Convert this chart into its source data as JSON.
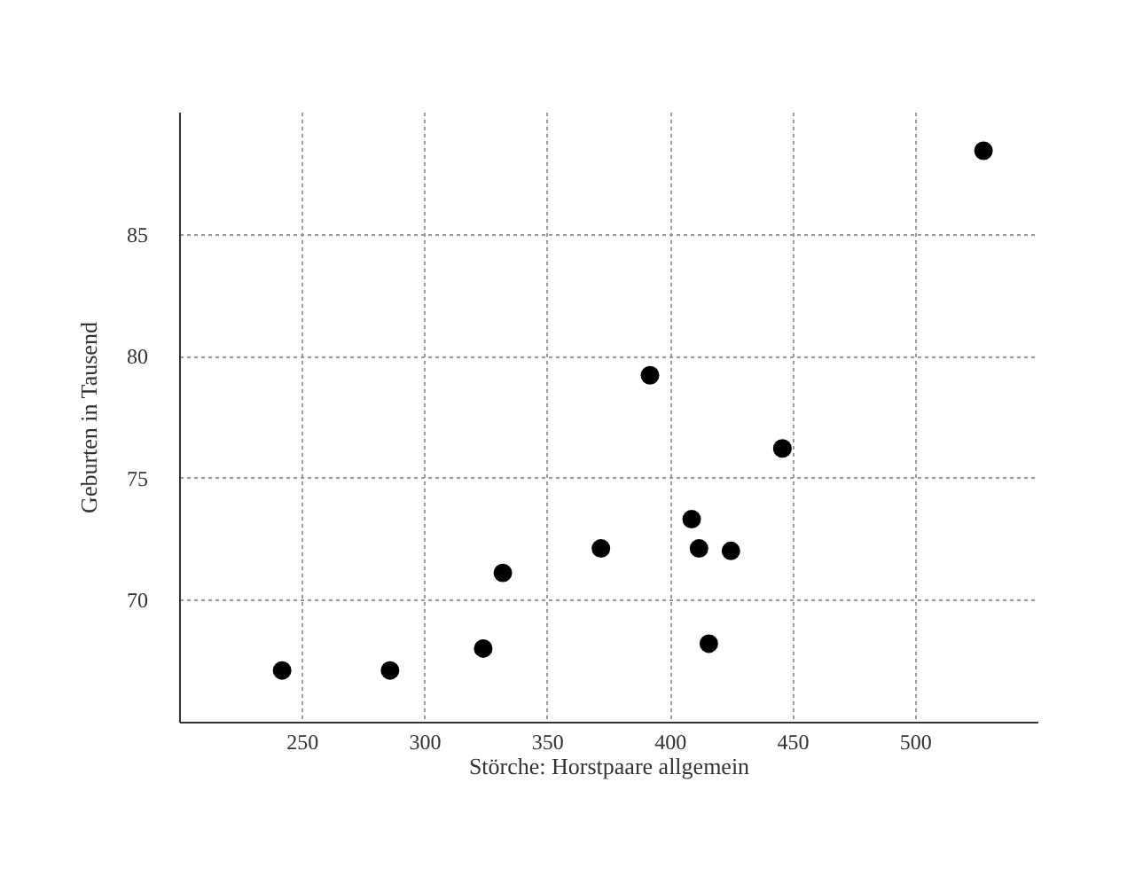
{
  "chart_data": {
    "type": "scatter",
    "xlabel": "Störche: Horstpaare allgemein",
    "ylabel": "Geburten in Tausend",
    "x": [
      242,
      286,
      324,
      332,
      372,
      392,
      409,
      412,
      425,
      416,
      446,
      528
    ],
    "series": [
      {
        "color": "#000000",
        "values": [
          67.1,
          67.1,
          68.0,
          71.1,
          72.1,
          79.2,
          73.3,
          72.1,
          72.0,
          68.2,
          76.2,
          88.4
        ]
      }
    ],
    "xlim": [
      200,
      550
    ],
    "ylim": [
      65,
      90
    ],
    "xticks": [
      250,
      300,
      350,
      400,
      450,
      500
    ],
    "yticks": [
      70,
      75,
      80,
      85
    ],
    "grid": true,
    "marker": "circle"
  }
}
